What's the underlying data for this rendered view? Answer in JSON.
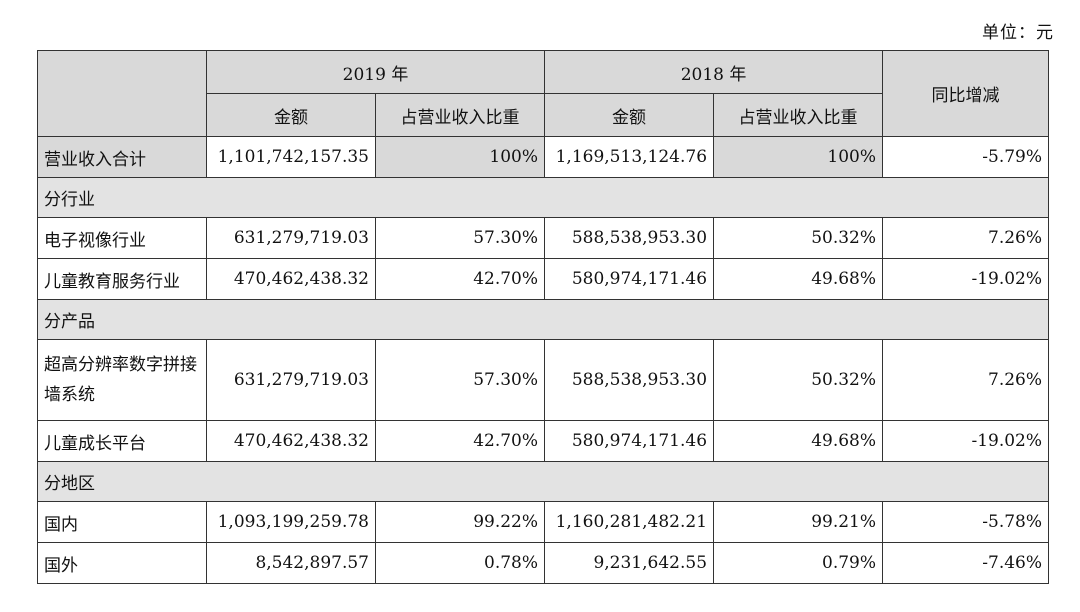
{
  "unit_label": "单位：元",
  "headers": {
    "year_2019": "2019 年",
    "year_2018": "2018 年",
    "yoy": "同比增减",
    "amount": "金额",
    "ratio": "占营业收入比重"
  },
  "total": {
    "label": "营业收入合计",
    "amount_2019": "1,101,742,157.35",
    "ratio_2019": "100%",
    "amount_2018": "1,169,513,124.76",
    "ratio_2018": "100%",
    "yoy": "-5.79%"
  },
  "sections": [
    {
      "title": "分行业",
      "rows": [
        {
          "label": "电子视像行业",
          "amount_2019": "631,279,719.03",
          "ratio_2019": "57.30%",
          "amount_2018": "588,538,953.30",
          "ratio_2018": "50.32%",
          "yoy": "7.26%"
        },
        {
          "label": "儿童教育服务行业",
          "amount_2019": "470,462,438.32",
          "ratio_2019": "42.70%",
          "amount_2018": "580,974,171.46",
          "ratio_2018": "49.68%",
          "yoy": "-19.02%"
        }
      ]
    },
    {
      "title": "分产品",
      "rows": [
        {
          "label": "超高分辨率数字拼接墙系统",
          "amount_2019": "631,279,719.03",
          "ratio_2019": "57.30%",
          "amount_2018": "588,538,953.30",
          "ratio_2018": "50.32%",
          "yoy": "7.26%"
        },
        {
          "label": "儿童成长平台",
          "amount_2019": "470,462,438.32",
          "ratio_2019": "42.70%",
          "amount_2018": "580,974,171.46",
          "ratio_2018": "49.68%",
          "yoy": "-19.02%"
        }
      ]
    },
    {
      "title": "分地区",
      "rows": [
        {
          "label": "国内",
          "amount_2019": "1,093,199,259.78",
          "ratio_2019": "99.22%",
          "amount_2018": "1,160,281,482.21",
          "ratio_2018": "99.21%",
          "yoy": "-5.78%"
        },
        {
          "label": "国外",
          "amount_2019": "8,542,897.57",
          "ratio_2019": "0.78%",
          "amount_2018": "9,231,642.55",
          "ratio_2018": "0.79%",
          "yoy": "-7.46%"
        }
      ]
    }
  ]
}
